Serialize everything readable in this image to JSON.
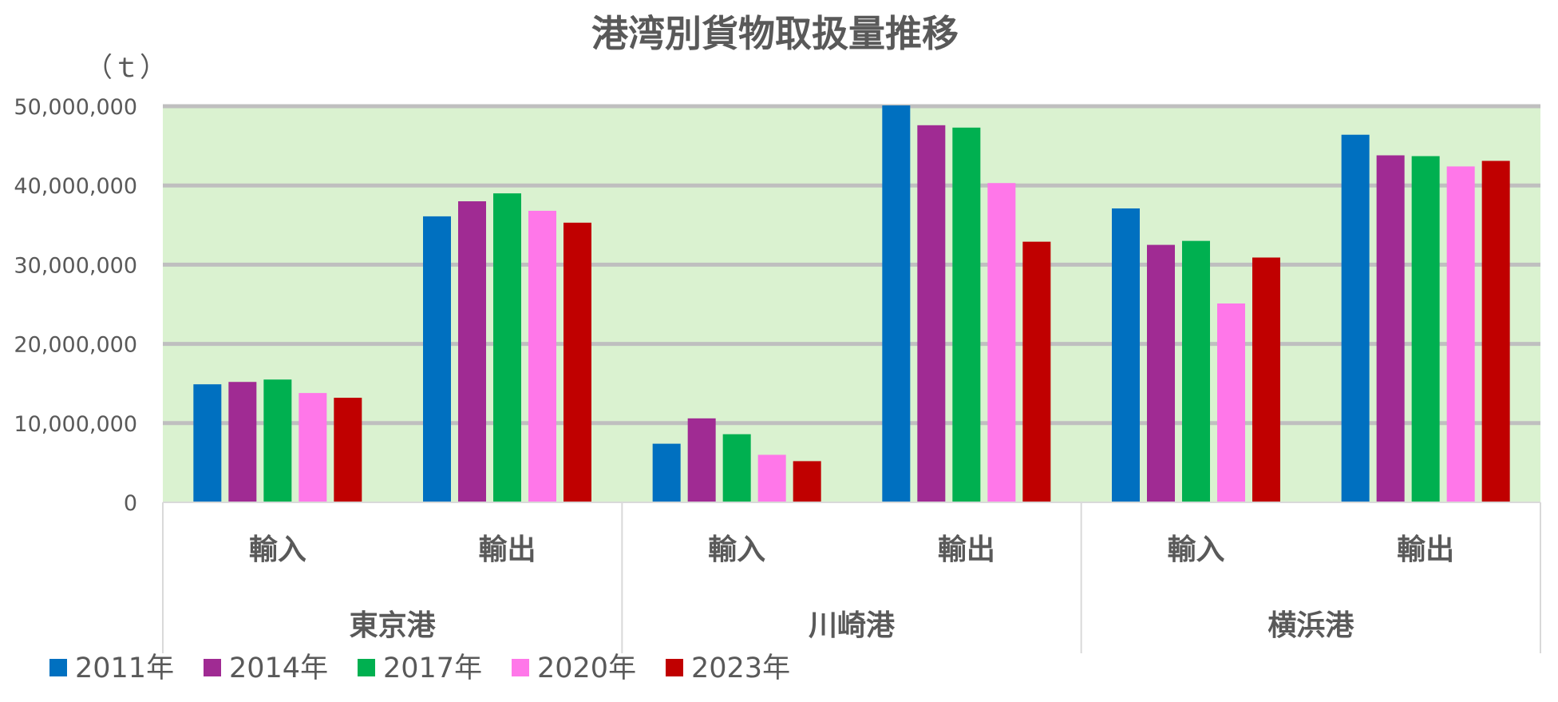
{
  "chart_data": {
    "type": "bar",
    "title": "港湾別貨物取扱量推移",
    "unit_label": "（ｔ）",
    "ylim": [
      0,
      50000000
    ],
    "yticks": [
      0,
      10000000,
      20000000,
      30000000,
      40000000,
      50000000
    ],
    "ytick_labels": [
      "0",
      "10,000,000",
      "20,000,000",
      "30,000,000",
      "40,000,000",
      "50,000,000"
    ],
    "grid": true,
    "legend_position": "bottom-left",
    "plot_background": "#daf2d0",
    "groups": [
      {
        "label": "東京港",
        "subcategories": [
          "輸入",
          "輸出"
        ]
      },
      {
        "label": "川崎港",
        "subcategories": [
          "輸入",
          "輸出"
        ]
      },
      {
        "label": "横浜港",
        "subcategories": [
          "輸入",
          "輸出"
        ]
      }
    ],
    "categories": [
      "東京港 輸入",
      "東京港 輸出",
      "川崎港 輸入",
      "川崎港 輸出",
      "横浜港 輸入",
      "横浜港 輸出"
    ],
    "series": [
      {
        "name": "2011年",
        "color": "#0070c0",
        "values": [
          14900000,
          36100000,
          7400000,
          50100000,
          37100000,
          46400000
        ]
      },
      {
        "name": "2014年",
        "color": "#a02b93",
        "values": [
          15200000,
          38000000,
          10600000,
          47600000,
          32500000,
          43800000
        ]
      },
      {
        "name": "2017年",
        "color": "#00b050",
        "values": [
          15500000,
          39000000,
          8600000,
          47300000,
          33000000,
          43700000
        ]
      },
      {
        "name": "2020年",
        "color": "#ff77e9",
        "values": [
          13800000,
          36800000,
          6000000,
          40300000,
          25100000,
          42400000
        ]
      },
      {
        "name": "2023年",
        "color": "#c00000",
        "values": [
          13200000,
          35300000,
          5200000,
          32900000,
          30900000,
          43100000
        ]
      }
    ]
  }
}
